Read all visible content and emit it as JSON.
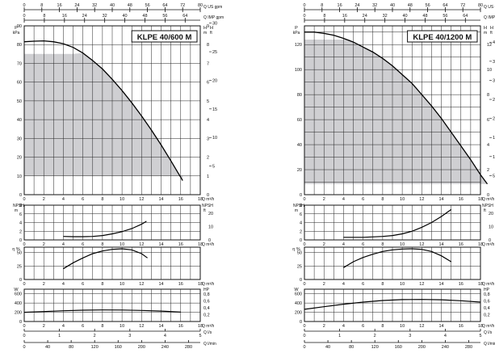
{
  "chart_data": [
    {
      "type": "line",
      "model": "KLPE 40/600 M",
      "top_us_axis": {
        "label": "Q US gpm",
        "ticks": [
          0,
          8,
          16,
          24,
          32,
          40,
          48,
          56,
          64,
          72,
          80
        ],
        "lim": [
          0,
          80
        ]
      },
      "top_imp_axis": {
        "label": "Q IMP gpm",
        "ticks": [
          0,
          8,
          16,
          24,
          32,
          40,
          48,
          56,
          64
        ],
        "lim": [
          0,
          70
        ]
      },
      "x_m3h": {
        "label": "Q m³/h",
        "ticks": [
          0,
          2,
          4,
          6,
          8,
          10,
          12,
          14,
          16,
          18
        ],
        "lim": [
          0,
          18
        ]
      },
      "bottom_ls_axis": {
        "label": "Q l/s",
        "ticks": [
          0,
          1,
          2,
          3,
          4,
          5
        ],
        "lim": [
          0,
          5
        ]
      },
      "bottom_lmin_axis": {
        "label": "Q l/min",
        "ticks": [
          0,
          40,
          80,
          120,
          160,
          200,
          240,
          280
        ],
        "lim": [
          0,
          300
        ]
      },
      "head": {
        "left_label": "P kPa",
        "left_lim": [
          0,
          90
        ],
        "left_ticks": [
          0,
          10,
          20,
          30,
          40,
          50,
          60,
          70,
          80,
          90
        ],
        "right_label": "H m",
        "right_lim": [
          0,
          9
        ],
        "right_ticks": [
          0,
          1,
          2,
          3,
          4,
          5,
          6,
          7,
          8,
          9
        ],
        "right2_label": "H ft",
        "right2_ticks": [
          5,
          10,
          15,
          20,
          25,
          30
        ],
        "curve_q": [
          0,
          1,
          2,
          3,
          4,
          5,
          6,
          7,
          8,
          9,
          10,
          11,
          12,
          13,
          14,
          15,
          16.2
        ],
        "curve_p": [
          81.5,
          81.8,
          82,
          81.5,
          80.5,
          78.5,
          75.5,
          71.5,
          67,
          61.5,
          55.5,
          49,
          42,
          34.5,
          26.5,
          18,
          7.5
        ],
        "region_q": [
          0,
          0,
          4.9,
          6,
          7,
          8,
          9,
          10,
          11,
          12,
          13,
          14,
          15,
          16.2,
          16.2
        ],
        "region_p": [
          10,
          75,
          75,
          75.5,
          71.5,
          67,
          61.5,
          55.5,
          49,
          42,
          34.5,
          26.5,
          18,
          7.5,
          10
        ]
      },
      "npsh": {
        "left_label": "NPSH m",
        "left_lim": [
          0,
          8
        ],
        "left_ticks": [
          0,
          2,
          4,
          6,
          8
        ],
        "right_label": "NPSH ft",
        "right_lim": [
          0,
          26.2
        ],
        "right_ticks": [
          0,
          10,
          20
        ],
        "curve_q": [
          4,
          5,
          6,
          7,
          8,
          9,
          10,
          11,
          12,
          12.5
        ],
        "curve_v": [
          0.8,
          0.75,
          0.75,
          0.8,
          1.0,
          1.4,
          1.9,
          2.6,
          3.6,
          4.3
        ]
      },
      "eff": {
        "left_label": "η %",
        "left_lim": [
          0,
          60
        ],
        "left_ticks": [
          0,
          25,
          50
        ],
        "curve_q": [
          4,
          5,
          6,
          7,
          8,
          9,
          10,
          11,
          12,
          12.6
        ],
        "curve_v": [
          20,
          31,
          40,
          48,
          53,
          56,
          57,
          55,
          48,
          40
        ]
      },
      "power": {
        "left_label": "W",
        "left_lim": [
          0,
          700
        ],
        "left_ticks": [
          0,
          200,
          400,
          600
        ],
        "right_label": "HP",
        "right_lim": [
          0,
          0.939
        ],
        "right_ticks": [
          "0,2",
          "0,4",
          "0,6",
          "0,8"
        ],
        "curve_q": [
          0,
          2,
          4,
          6,
          8,
          10,
          12,
          14,
          16
        ],
        "curve_v": [
          200,
          215,
          232,
          245,
          250,
          248,
          240,
          225,
          205
        ]
      }
    },
    {
      "type": "line",
      "model": "KLPE 40/1200 M",
      "top_us_axis": {
        "label": "Q US gpm",
        "ticks": [
          0,
          8,
          16,
          24,
          32,
          40,
          48,
          56,
          64,
          72,
          80
        ],
        "lim": [
          0,
          80
        ]
      },
      "top_imp_axis": {
        "label": "Q IMP gpm",
        "ticks": [
          0,
          8,
          16,
          24,
          32,
          40,
          48,
          56,
          64
        ],
        "lim": [
          0,
          70
        ]
      },
      "x_m3h": {
        "label": "Q m³/h",
        "ticks": [
          0,
          2,
          4,
          6,
          8,
          10,
          12,
          14,
          16,
          18
        ],
        "lim": [
          0,
          18
        ]
      },
      "bottom_ls_axis": {
        "label": "Q l/s",
        "ticks": [
          0,
          1,
          2,
          3,
          4,
          5
        ],
        "lim": [
          0,
          5
        ]
      },
      "bottom_lmin_axis": {
        "label": "Q l/min",
        "ticks": [
          0,
          40,
          80,
          120,
          160,
          200,
          240,
          280
        ],
        "lim": [
          0,
          300
        ]
      },
      "head": {
        "left_label": "P kPa",
        "left_lim": [
          0,
          135
        ],
        "left_ticks": [
          0,
          20,
          40,
          60,
          80,
          100,
          120
        ],
        "right_label": "H m",
        "right_lim": [
          0,
          13.5
        ],
        "right_ticks": [
          0,
          2,
          4,
          6,
          8,
          10,
          12
        ],
        "right2_label": "H ft",
        "right2_ticks": [
          5,
          10,
          15,
          20,
          25,
          30,
          35,
          40
        ],
        "curve_q": [
          0,
          1,
          2,
          3,
          4,
          5,
          6,
          7,
          8,
          9,
          10,
          11,
          12,
          13,
          14,
          15,
          16,
          17,
          18,
          18.7
        ],
        "curve_p": [
          130,
          130,
          129,
          127.5,
          125,
          122,
          118,
          114,
          109,
          103,
          96,
          89,
          80,
          71,
          61,
          50,
          39,
          28,
          16,
          8.5
        ],
        "region_q": [
          0,
          0,
          4.6,
          5,
          6,
          7,
          8,
          9,
          10,
          11,
          12,
          13,
          14,
          15,
          16,
          17,
          18,
          18.7,
          18.7
        ],
        "region_p": [
          8.5,
          124,
          124,
          122,
          118,
          114,
          109,
          103,
          96,
          89,
          80,
          71,
          61,
          50,
          39,
          28,
          16,
          8.5,
          8.5
        ]
      },
      "npsh": {
        "left_label": "NPSH m",
        "left_lim": [
          0,
          8
        ],
        "left_ticks": [
          0,
          2,
          4,
          6,
          8
        ],
        "right_label": "NPSH ft",
        "right_lim": [
          0,
          26.2
        ],
        "right_ticks": [
          0,
          10,
          20
        ],
        "curve_q": [
          4,
          6,
          8,
          9,
          10,
          11,
          12,
          13,
          14,
          15
        ],
        "curve_v": [
          0.6,
          0.6,
          0.8,
          1.0,
          1.4,
          2.0,
          2.9,
          4.0,
          5.4,
          7.0
        ]
      },
      "eff": {
        "left_label": "η %",
        "left_lim": [
          0,
          60
        ],
        "left_ticks": [
          0,
          25,
          50
        ],
        "curve_q": [
          4,
          5,
          6,
          7,
          8,
          9,
          10,
          11,
          12,
          13,
          14,
          15
        ],
        "curve_v": [
          22,
          33,
          41,
          47,
          52,
          55,
          56.5,
          57,
          56,
          52,
          44,
          33
        ]
      },
      "power": {
        "left_label": "W",
        "left_lim": [
          0,
          700
        ],
        "left_ticks": [
          0,
          200,
          400,
          600
        ],
        "right_label": "HP",
        "right_lim": [
          0,
          0.939
        ],
        "right_ticks": [
          "0,2",
          "0,4",
          "0,6",
          "0,8"
        ],
        "curve_q": [
          0,
          2,
          4,
          6,
          8,
          10,
          12,
          14,
          16,
          18
        ],
        "curve_v": [
          265,
          320,
          375,
          420,
          455,
          475,
          478,
          470,
          450,
          420
        ]
      }
    }
  ]
}
